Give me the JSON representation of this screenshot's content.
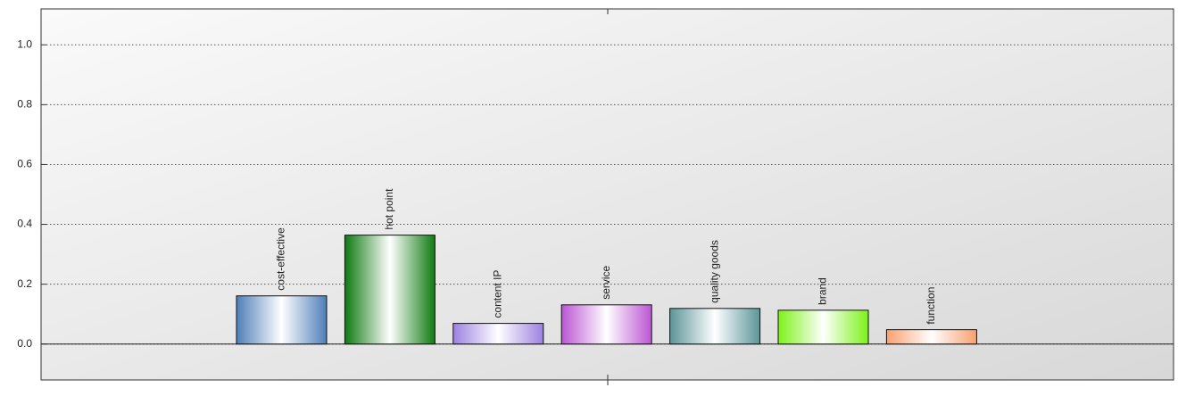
{
  "chart_data": {
    "type": "bar",
    "categories": [
      "cost-effective",
      "hot point",
      "content IP",
      "service",
      "quality goods",
      "brand",
      "function"
    ],
    "values": [
      0.161,
      0.364,
      0.069,
      0.131,
      0.119,
      0.113,
      0.048
    ],
    "colors": [
      "#4f7fb8",
      "#0e7a10",
      "#9c82e0",
      "#bb55d4",
      "#5b9598",
      "#7cf218",
      "#f8a070"
    ],
    "ylim": [
      -0.12,
      1.12
    ],
    "yticks": [
      {
        "value": 0,
        "label": "0.0"
      },
      {
        "value": 0.2,
        "label": "0.2"
      },
      {
        "value": 0.4,
        "label": "0.4"
      },
      {
        "value": 0.6,
        "label": "0.6"
      },
      {
        "value": 0.8,
        "label": "0.8"
      },
      {
        "value": 1,
        "label": "1.0"
      }
    ],
    "grid": true
  }
}
